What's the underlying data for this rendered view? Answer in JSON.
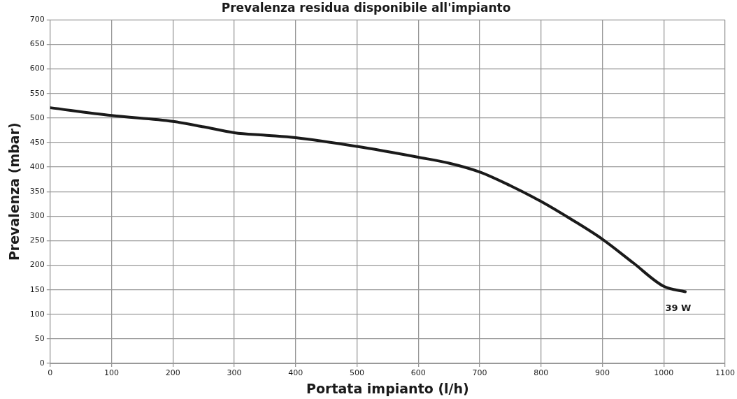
{
  "chart_data": {
    "type": "line",
    "title": "Prevalenza residua disponibile all'impianto",
    "xlabel": "Portata impianto (l/h)",
    "ylabel": "Prevalenza (mbar)",
    "x": [
      0,
      100,
      200,
      250,
      300,
      350,
      400,
      500,
      600,
      650,
      700,
      750,
      800,
      850,
      900,
      950,
      1000,
      1035
    ],
    "series": [
      {
        "name": "39 W",
        "color": "#1a1a1a",
        "values": [
          521,
          505,
          493,
          482,
          470,
          465,
          460,
          442,
          420,
          408,
          390,
          362,
          330,
          293,
          253,
          205,
          157,
          146
        ]
      }
    ],
    "xlim": [
      0,
      1100
    ],
    "xticks": [
      0,
      100,
      200,
      300,
      400,
      500,
      600,
      700,
      800,
      900,
      1000,
      1100
    ],
    "ylim": [
      0,
      700
    ],
    "yticks": [
      0,
      50,
      100,
      150,
      200,
      250,
      300,
      350,
      400,
      450,
      500,
      550,
      600,
      650,
      700
    ],
    "grid": true,
    "legend": false,
    "marker": "none",
    "line_style": "solid"
  }
}
